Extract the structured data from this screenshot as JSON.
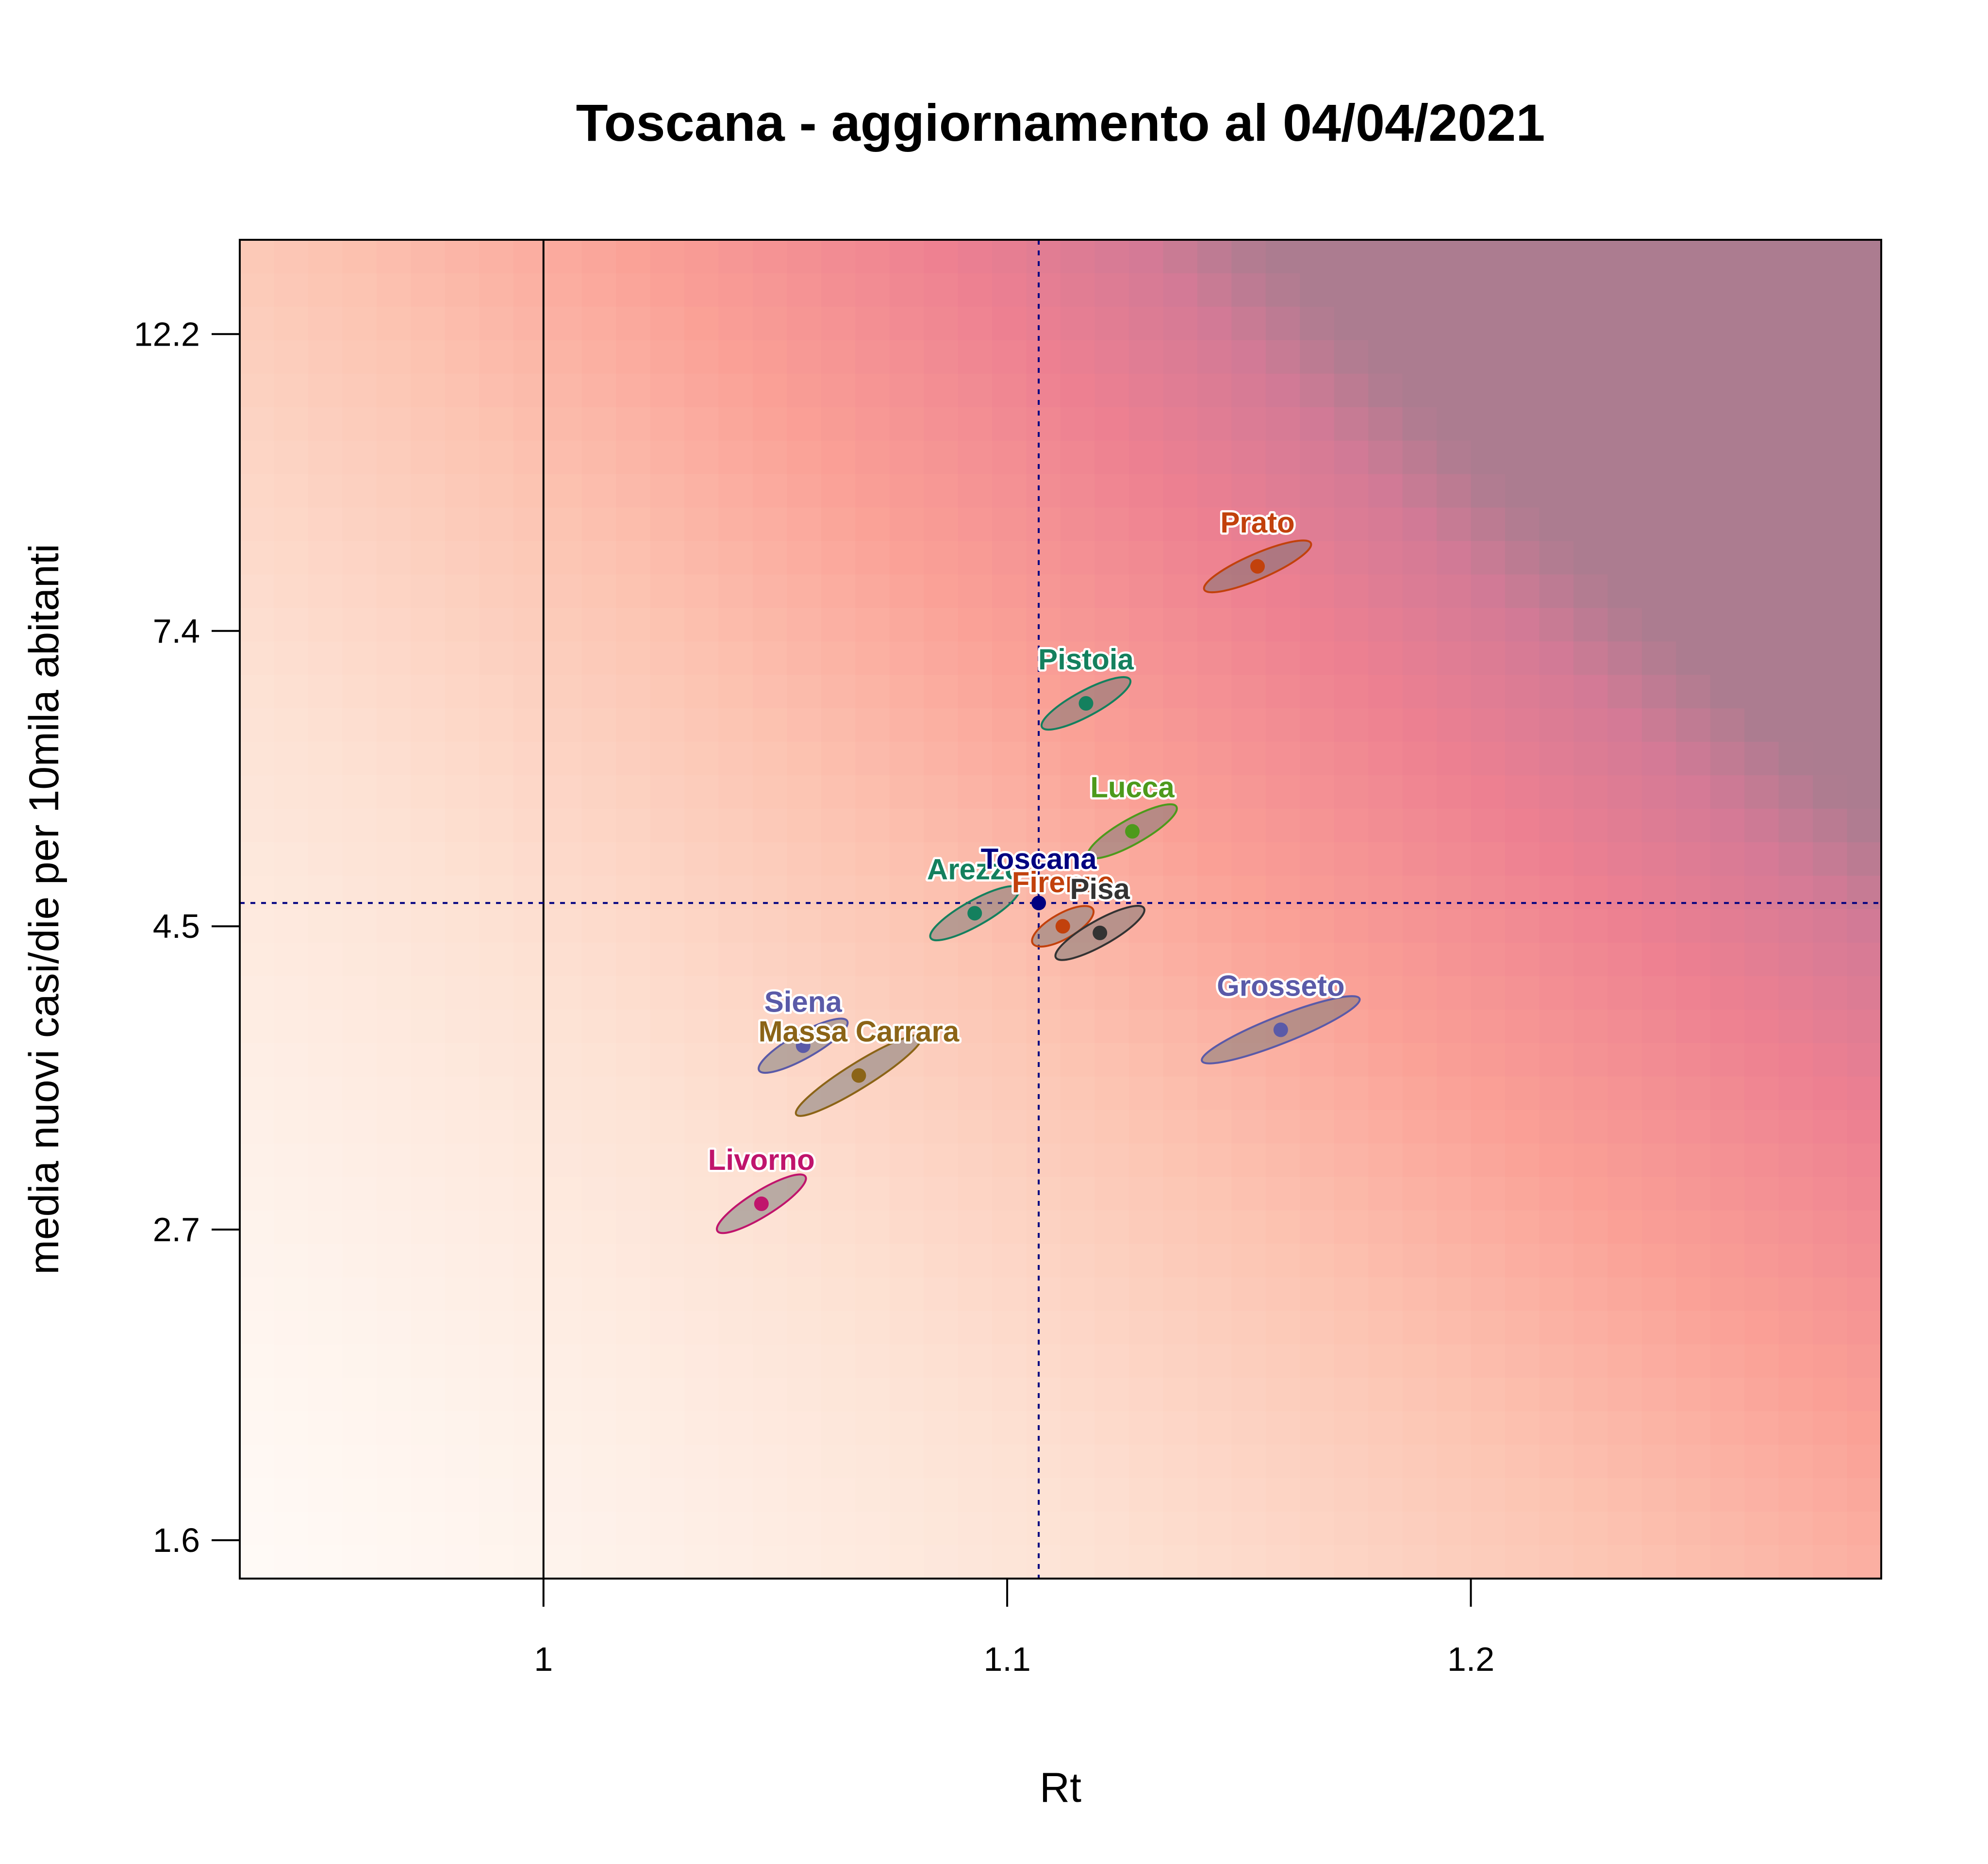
{
  "chart_data": {
    "type": "scatter",
    "title": "Toscana - aggiornamento al 04/04/2021",
    "xlabel": "Rt",
    "ylabel": "media nuovi casi/die per 10mila abitanti",
    "xlim": [
      0.9345,
      1.2885
    ],
    "ylim": [
      1.5,
      14.3
    ],
    "y_scale": "log",
    "x_ticks": [
      1,
      1.1,
      1.2
    ],
    "x_tick_labels": [
      "1",
      "1.1",
      "1.2"
    ],
    "y_ticks": [
      1.6,
      2.7,
      4.5,
      7.4,
      12.2
    ],
    "y_tick_labels": [
      "1.6",
      "2.7",
      "4.5",
      "7.4",
      "12.2"
    ],
    "reference_lines": {
      "vertical_solid": 1.0,
      "vertical_dotted": 1.1068,
      "horizontal_dotted": 4.68
    },
    "grid": false,
    "legend": "none",
    "background": "heatmap gradient from white (low Rt, low cases) to red/purple (high Rt, high cases)",
    "points": [
      {
        "name": "Prato",
        "x": 1.154,
        "y": 8.25,
        "color": "#c2410c",
        "ellipse": {
          "rx": 0.0115,
          "ry": 0.052,
          "slope": 0.75
        }
      },
      {
        "name": "Pistoia",
        "x": 1.117,
        "y": 6.55,
        "color": "#14805e",
        "ellipse": {
          "rx": 0.0095,
          "ry": 0.05,
          "slope": 0.8
        }
      },
      {
        "name": "Lucca",
        "x": 1.127,
        "y": 5.28,
        "color": "#4d9a1c",
        "ellipse": {
          "rx": 0.0095,
          "ry": 0.052,
          "slope": 0.8
        }
      },
      {
        "name": "Arezzo",
        "x": 1.093,
        "y": 4.6,
        "color": "#14805e",
        "ellipse": {
          "rx": 0.0095,
          "ry": 0.052,
          "slope": 0.8
        }
      },
      {
        "name": "Toscana",
        "x": 1.1068,
        "y": 4.68,
        "color": "#000080",
        "ellipse": null
      },
      {
        "name": "Firenze",
        "x": 1.112,
        "y": 4.5,
        "color": "#c2410c",
        "ellipse": {
          "rx": 0.0065,
          "ry": 0.036,
          "slope": 0.8
        }
      },
      {
        "name": "Pisa",
        "x": 1.12,
        "y": 4.45,
        "color": "#333333",
        "ellipse": {
          "rx": 0.0095,
          "ry": 0.052,
          "slope": 0.8
        }
      },
      {
        "name": "Grosseto",
        "x": 1.159,
        "y": 3.78,
        "color": "#5a5aa8",
        "ellipse": {
          "rx": 0.017,
          "ry": 0.075,
          "slope": 0.7
        }
      },
      {
        "name": "Siena",
        "x": 1.056,
        "y": 3.68,
        "color": "#5a5aa8",
        "ellipse": {
          "rx": 0.0095,
          "ry": 0.052,
          "slope": 0.8
        }
      },
      {
        "name": "Massa Carrara",
        "x": 1.068,
        "y": 3.5,
        "color": "#8b6417",
        "ellipse": {
          "rx": 0.0135,
          "ry": 0.08,
          "slope": 0.82
        }
      },
      {
        "name": "Livorno",
        "x": 1.047,
        "y": 2.82,
        "color": "#c0146c",
        "ellipse": {
          "rx": 0.0095,
          "ry": 0.056,
          "slope": 0.82
        }
      }
    ]
  }
}
